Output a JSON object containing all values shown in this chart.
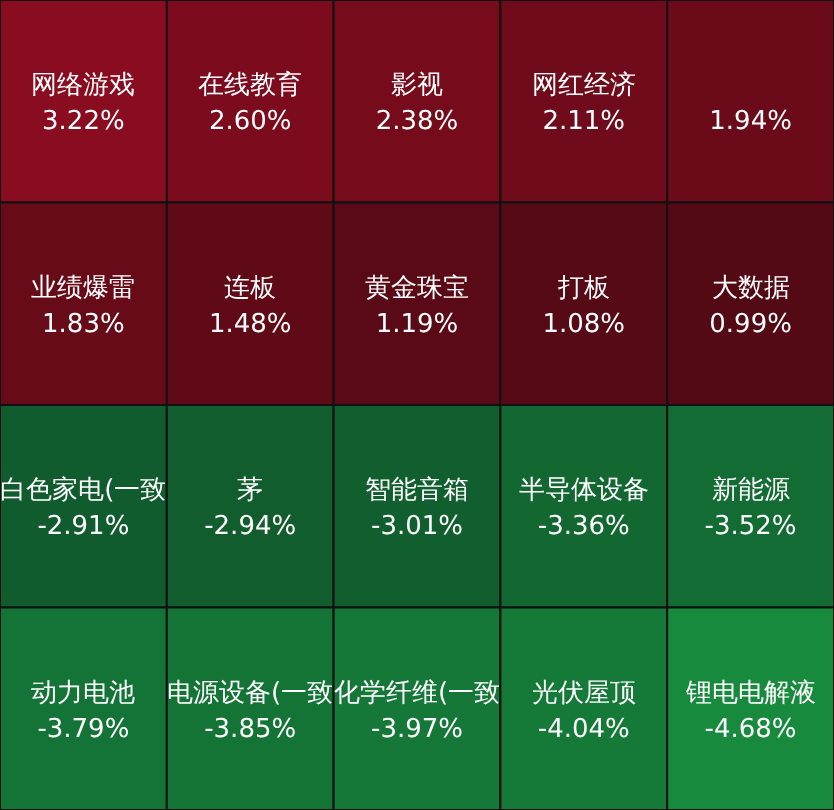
{
  "chart_data": {
    "type": "other",
    "categories": [
      "网络游戏",
      "在线教育",
      "影视",
      "网红经济",
      null,
      "业绩爆雷",
      "连板",
      "黄金珠宝",
      "打板",
      "大数据",
      "白色家电(一致",
      "茅",
      "智能音箱",
      "半导体设备",
      "新能源",
      "动力电池",
      "电源设备(一致",
      "化学纤维(一致",
      "光伏屋顶",
      "锂电电解液"
    ],
    "values": [
      3.22,
      2.6,
      2.38,
      2.11,
      1.94,
      1.83,
      1.48,
      1.19,
      1.08,
      0.99,
      -2.91,
      -2.94,
      -3.01,
      -3.36,
      -3.52,
      -3.79,
      -3.85,
      -3.97,
      -4.04,
      -4.68
    ],
    "value_labels": [
      "3.22%",
      "2.60%",
      "2.38%",
      "2.11%",
      "1.94%",
      "1.83%",
      "1.48%",
      "1.19%",
      "1.08%",
      "0.99%",
      "-2.91%",
      "-2.94%",
      "-3.01%",
      "-3.36%",
      "-3.52%",
      "-3.79%",
      "-3.85%",
      "-3.97%",
      "-4.04%",
      "-4.68%"
    ]
  }
}
